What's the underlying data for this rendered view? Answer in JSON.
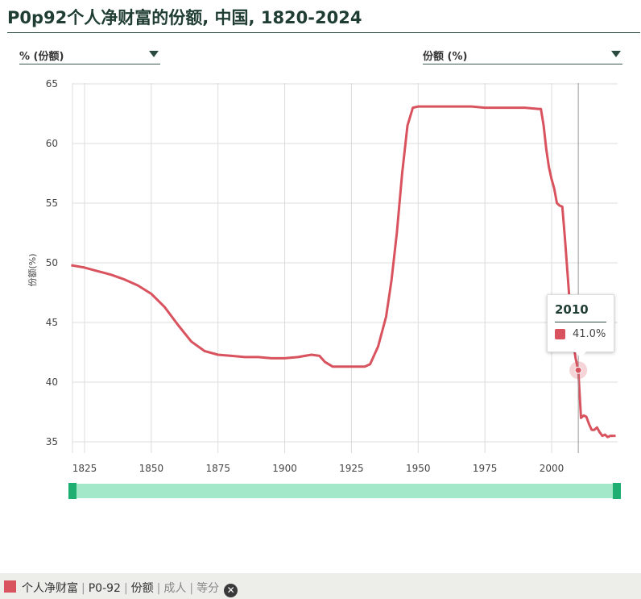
{
  "title": "P0p92个人净财富的份额, 中国, 1820-2024",
  "selectors": {
    "left_value": "% (份额)",
    "right_value": "份额 (%)"
  },
  "tooltip": {
    "year": "2010",
    "value": "41.0%"
  },
  "footer": {
    "items": [
      "个人净财富",
      "P0-92",
      "份额",
      "成人",
      "等分"
    ]
  },
  "colors": {
    "series": "#d9535f",
    "slider": "#a3e8c9",
    "slider_handle": "#1fae72",
    "title": "#1f3d33"
  },
  "chart_data": {
    "type": "line",
    "ylabel": "份额(%)",
    "xlim": [
      1820,
      2024
    ],
    "ylim": [
      34,
      65
    ],
    "x_ticks": [
      1825,
      1850,
      1875,
      1900,
      1925,
      1950,
      1975,
      2000
    ],
    "y_ticks": [
      35,
      40,
      45,
      50,
      55,
      60,
      65
    ],
    "grid": true,
    "series": [
      {
        "color": "#d9535f",
        "x": [
          1820,
          1825,
          1830,
          1835,
          1840,
          1845,
          1850,
          1855,
          1860,
          1865,
          1870,
          1875,
          1880,
          1885,
          1890,
          1895,
          1900,
          1905,
          1910,
          1913,
          1915,
          1918,
          1920,
          1925,
          1930,
          1932,
          1935,
          1938,
          1940,
          1942,
          1944,
          1946,
          1948,
          1950,
          1955,
          1960,
          1965,
          1970,
          1975,
          1980,
          1985,
          1990,
          1995,
          1996,
          1997,
          1998,
          1999,
          2000,
          2001,
          2002,
          2003,
          2004,
          2005,
          2006,
          2007,
          2008,
          2009,
          2010,
          2011,
          2012,
          2013,
          2014,
          2015,
          2016,
          2017,
          2018,
          2019,
          2020,
          2021,
          2022,
          2023,
          2024
        ],
        "values": [
          49.8,
          49.6,
          49.3,
          49.0,
          48.6,
          48.1,
          47.4,
          46.3,
          44.8,
          43.4,
          42.6,
          42.3,
          42.2,
          42.1,
          42.1,
          42.0,
          42.0,
          42.1,
          42.3,
          42.2,
          41.7,
          41.3,
          41.3,
          41.3,
          41.3,
          41.5,
          43.0,
          45.5,
          48.5,
          52.5,
          57.5,
          61.5,
          63.0,
          63.1,
          63.1,
          63.1,
          63.1,
          63.1,
          63.0,
          63.0,
          63.0,
          63.0,
          62.9,
          62.9,
          61.5,
          59.5,
          58.0,
          57.0,
          56.2,
          55.0,
          54.8,
          54.7,
          52.0,
          49.0,
          46.0,
          43.5,
          42.0,
          41.0,
          37.0,
          37.2,
          37.1,
          36.5,
          36.0,
          36.0,
          36.2,
          35.8,
          35.5,
          35.6,
          35.4,
          35.5,
          35.5,
          35.5
        ]
      }
    ],
    "highlight": {
      "x": 2010,
      "y": 41.0
    }
  }
}
